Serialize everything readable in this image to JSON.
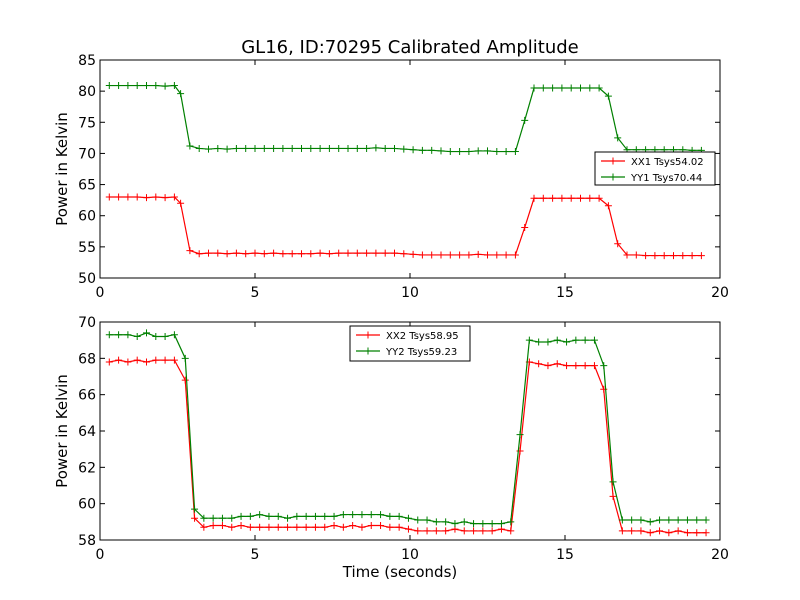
{
  "chart_data": [
    {
      "type": "line",
      "title": "GL16, ID:70295 Calibrated Amplitude",
      "xlabel": "",
      "ylabel": "Power in Kelvin",
      "xlim": [
        0,
        20
      ],
      "ylim": [
        50,
        85
      ],
      "xticks": [
        0,
        5,
        10,
        15,
        20
      ],
      "yticks": [
        50,
        55,
        60,
        65,
        70,
        75,
        80,
        85
      ],
      "legend_position": "right",
      "grid": false,
      "x": [
        0.3,
        0.6,
        0.9,
        1.2,
        1.5,
        1.8,
        2.1,
        2.4,
        2.6,
        2.9,
        3.2,
        3.5,
        3.8,
        4.1,
        4.4,
        4.7,
        5.0,
        5.3,
        5.6,
        5.9,
        6.2,
        6.5,
        6.8,
        7.1,
        7.4,
        7.7,
        8.0,
        8.3,
        8.6,
        8.9,
        9.2,
        9.5,
        9.8,
        10.1,
        10.4,
        10.7,
        11.0,
        11.3,
        11.6,
        11.9,
        12.2,
        12.5,
        12.8,
        13.1,
        13.4,
        13.7,
        14.0,
        14.3,
        14.6,
        14.9,
        15.2,
        15.5,
        15.8,
        16.1,
        16.4,
        16.7,
        17.0,
        17.3,
        17.6,
        17.9,
        18.2,
        18.5,
        18.8,
        19.1,
        19.4
      ],
      "series": [
        {
          "name": "XX1 Tsys54.02",
          "color": "#ff0000",
          "values": [
            63.0,
            63.0,
            63.0,
            63.0,
            62.9,
            63.0,
            62.9,
            63.0,
            62.0,
            54.4,
            53.9,
            54.0,
            54.0,
            53.9,
            54.0,
            53.9,
            54.0,
            53.9,
            54.0,
            53.9,
            53.9,
            53.9,
            53.9,
            54.0,
            53.9,
            54.0,
            54.0,
            54.0,
            54.0,
            54.0,
            54.0,
            54.0,
            53.9,
            53.8,
            53.7,
            53.7,
            53.7,
            53.7,
            53.7,
            53.7,
            53.8,
            53.7,
            53.7,
            53.7,
            53.7,
            58.1,
            62.8,
            62.8,
            62.8,
            62.8,
            62.8,
            62.8,
            62.8,
            62.8,
            61.6,
            55.5,
            53.7,
            53.7,
            53.6,
            53.6,
            53.6,
            53.6,
            53.6,
            53.6,
            53.6
          ]
        },
        {
          "name": "YY1 Tsys70.44",
          "color": "#008000",
          "values": [
            80.9,
            80.9,
            80.9,
            80.9,
            80.9,
            80.9,
            80.8,
            80.9,
            79.6,
            71.2,
            70.8,
            70.7,
            70.8,
            70.7,
            70.8,
            70.8,
            70.8,
            70.8,
            70.8,
            70.8,
            70.8,
            70.8,
            70.8,
            70.8,
            70.8,
            70.8,
            70.8,
            70.8,
            70.8,
            70.9,
            70.8,
            70.8,
            70.7,
            70.6,
            70.5,
            70.5,
            70.4,
            70.3,
            70.3,
            70.3,
            70.4,
            70.4,
            70.3,
            70.3,
            70.3,
            75.3,
            80.5,
            80.5,
            80.5,
            80.5,
            80.5,
            80.5,
            80.5,
            80.5,
            79.2,
            72.5,
            70.6,
            70.6,
            70.6,
            70.6,
            70.6,
            70.6,
            70.6,
            70.5,
            70.5
          ]
        }
      ]
    },
    {
      "type": "line",
      "title": "",
      "xlabel": "Time (seconds)",
      "ylabel": "Power in Kelvin",
      "xlim": [
        0,
        20
      ],
      "ylim": [
        58,
        70
      ],
      "xticks": [
        0,
        5,
        10,
        15,
        20
      ],
      "yticks": [
        58,
        60,
        62,
        64,
        66,
        68,
        70
      ],
      "legend_position": "top-center",
      "grid": false,
      "x": [
        0.3,
        0.6,
        0.9,
        1.2,
        1.5,
        1.8,
        2.1,
        2.4,
        2.75,
        3.05,
        3.35,
        3.65,
        3.95,
        4.25,
        4.55,
        4.85,
        5.15,
        5.45,
        5.75,
        6.05,
        6.35,
        6.65,
        6.95,
        7.25,
        7.55,
        7.85,
        8.15,
        8.45,
        8.75,
        9.05,
        9.35,
        9.65,
        9.95,
        10.25,
        10.55,
        10.85,
        11.15,
        11.45,
        11.75,
        12.05,
        12.35,
        12.65,
        12.95,
        13.25,
        13.55,
        13.85,
        14.15,
        14.45,
        14.75,
        15.05,
        15.35,
        15.65,
        15.95,
        16.25,
        16.55,
        16.85,
        17.15,
        17.45,
        17.75,
        18.05,
        18.35,
        18.65,
        18.95,
        19.25,
        19.55
      ],
      "series": [
        {
          "name": "XX2 Tsys58.95",
          "color": "#ff0000",
          "values": [
            67.8,
            67.9,
            67.8,
            67.9,
            67.8,
            67.9,
            67.9,
            67.9,
            66.8,
            59.2,
            58.7,
            58.8,
            58.8,
            58.7,
            58.8,
            58.7,
            58.7,
            58.7,
            58.7,
            58.7,
            58.7,
            58.7,
            58.7,
            58.7,
            58.8,
            58.7,
            58.8,
            58.7,
            58.8,
            58.8,
            58.7,
            58.7,
            58.6,
            58.5,
            58.5,
            58.5,
            58.5,
            58.6,
            58.5,
            58.5,
            58.5,
            58.5,
            58.6,
            58.5,
            62.9,
            67.8,
            67.7,
            67.6,
            67.7,
            67.6,
            67.6,
            67.6,
            67.6,
            66.3,
            60.4,
            58.5,
            58.5,
            58.5,
            58.4,
            58.5,
            58.4,
            58.5,
            58.4,
            58.4,
            58.4
          ]
        },
        {
          "name": "YY2 Tsys59.23",
          "color": "#008000",
          "values": [
            69.3,
            69.3,
            69.3,
            69.2,
            69.4,
            69.2,
            69.2,
            69.3,
            68.0,
            59.7,
            59.2,
            59.2,
            59.2,
            59.2,
            59.3,
            59.3,
            59.4,
            59.3,
            59.3,
            59.2,
            59.3,
            59.3,
            59.3,
            59.3,
            59.3,
            59.4,
            59.4,
            59.4,
            59.4,
            59.4,
            59.3,
            59.3,
            59.2,
            59.1,
            59.1,
            59.0,
            59.0,
            58.9,
            59.0,
            58.9,
            58.9,
            58.9,
            58.9,
            59.0,
            63.8,
            69.0,
            68.9,
            68.9,
            69.0,
            68.9,
            69.0,
            69.0,
            69.0,
            67.6,
            61.2,
            59.1,
            59.1,
            59.1,
            59.0,
            59.1,
            59.1,
            59.1,
            59.1,
            59.1,
            59.1
          ]
        }
      ]
    }
  ]
}
